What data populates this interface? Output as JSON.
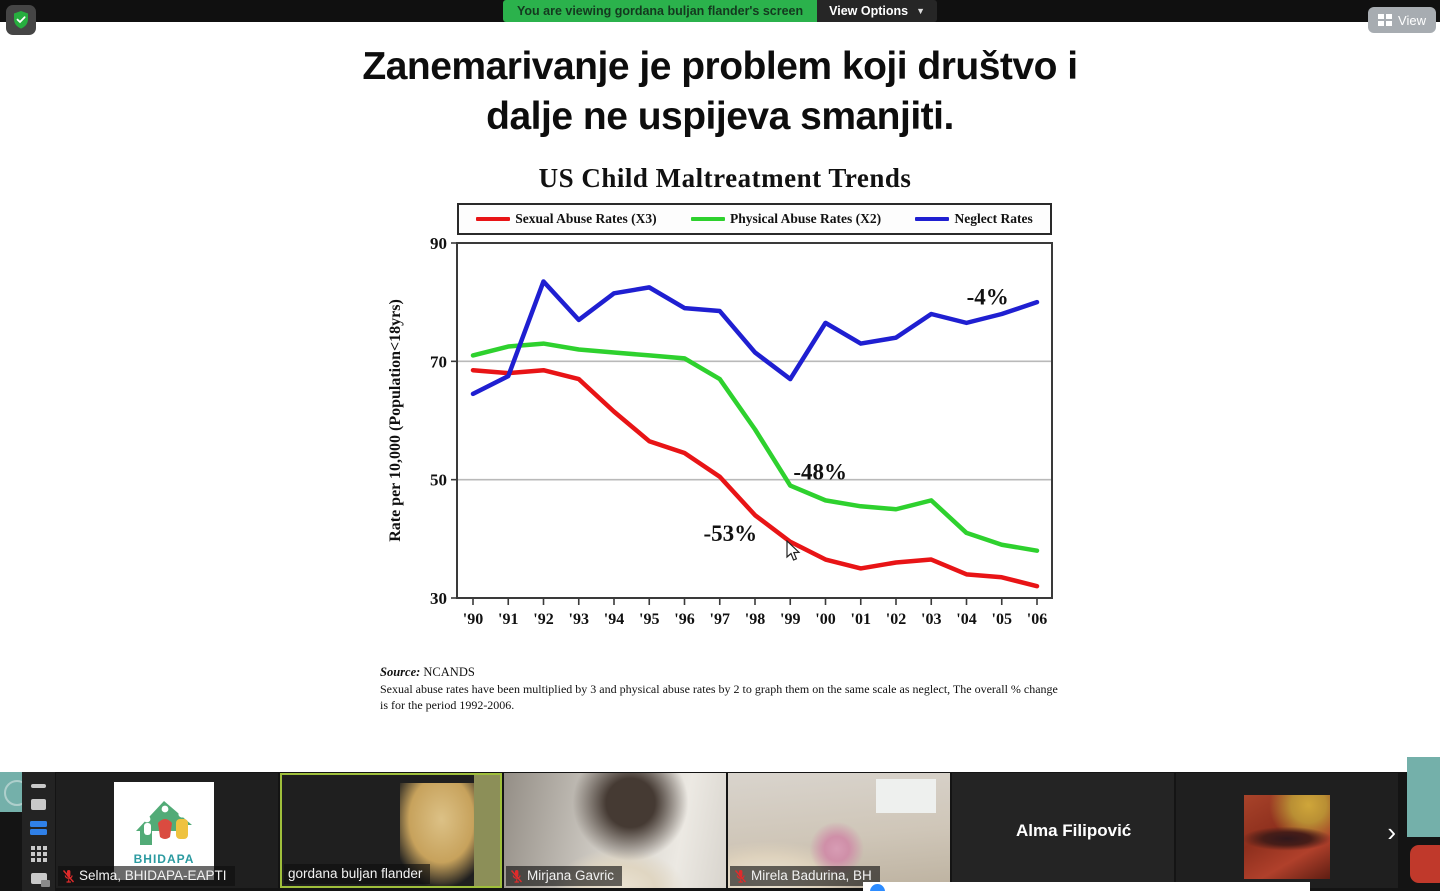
{
  "meeting": {
    "banner_text": "You are viewing gordana buljan flander's screen",
    "view_options_label": "View Options",
    "view_button_label": "View"
  },
  "slide": {
    "title_line1": "Zanemarivanje je problem koji društvo i",
    "title_line2": "dalje ne uspijeva smanjiti."
  },
  "chart_data": {
    "type": "line",
    "title": "US Child Maltreatment Trends",
    "ylabel": "Rate per 10,000 (Population<18yrs)",
    "x_tick_labels": [
      "'90",
      "'91",
      "'92",
      "'93",
      "'94",
      "'95",
      "'96",
      "'97",
      "'98",
      "'99",
      "'00",
      "'01",
      "'02",
      "'03",
      "'04",
      "'05",
      "'06"
    ],
    "ylim": [
      30,
      90
    ],
    "y_ticks": [
      30,
      50,
      70,
      90
    ],
    "gridlines_y": [
      50,
      70
    ],
    "legend_position": "top",
    "series": [
      {
        "name": "Sexual Abuse Rates (X3)",
        "color": "#e81416",
        "values": [
          68.5,
          68,
          68.5,
          67,
          61.5,
          56.5,
          54.5,
          50.5,
          44,
          39.5,
          36.5,
          35,
          36,
          36.5,
          34,
          33.5,
          32
        ]
      },
      {
        "name": "Physical Abuse Rates (X2)",
        "color": "#2ed12e",
        "values": [
          71,
          72.5,
          73,
          72,
          71.5,
          71,
          70.5,
          67,
          58.5,
          49,
          46.5,
          45.5,
          45,
          46.5,
          41,
          39,
          38
        ]
      },
      {
        "name": "Neglect Rates",
        "color": "#1f1fd1",
        "values": [
          64.5,
          67.5,
          83.5,
          77,
          81.5,
          82.5,
          79,
          78.5,
          71.5,
          67,
          76.5,
          73,
          74,
          78,
          76.5,
          78,
          80
        ]
      }
    ],
    "annotations": [
      {
        "text": "-4%",
        "year_index": 14.6,
        "value": 80.8
      },
      {
        "text": "-48%",
        "year_index": 9.85,
        "value": 51.2
      },
      {
        "text": "-53%",
        "year_index": 7.3,
        "value": 40.8
      }
    ],
    "source_label": "Source:",
    "source_value": "NCANDS",
    "footnote": "Sexual abuse rates have been multiplied by 3 and physical abuse rates by 2 to graph them on the same scale as neglect, The overall % change is for the period 1992-2006."
  },
  "filmstrip": {
    "participants": [
      {
        "name": "Selma, BHIDAPA-EAPTI",
        "muted": true
      },
      {
        "name": "gordana buljan flander",
        "muted": false
      },
      {
        "name": "Mirjana Gavric",
        "muted": true
      },
      {
        "name": "Mirela Badurina, BH",
        "muted": true
      },
      {
        "name": "Alma Filipović",
        "muted": false
      },
      {
        "name": "",
        "muted": false
      }
    ],
    "logo_word": "BHIDAPA",
    "next_button": "›"
  },
  "colors": {
    "banner_green": "#2bb24c",
    "active_speaker_border": "#9fbf3b",
    "muted_mic_red": "#e02b2b",
    "filmstrip_view_blue": "#2f80e8"
  }
}
